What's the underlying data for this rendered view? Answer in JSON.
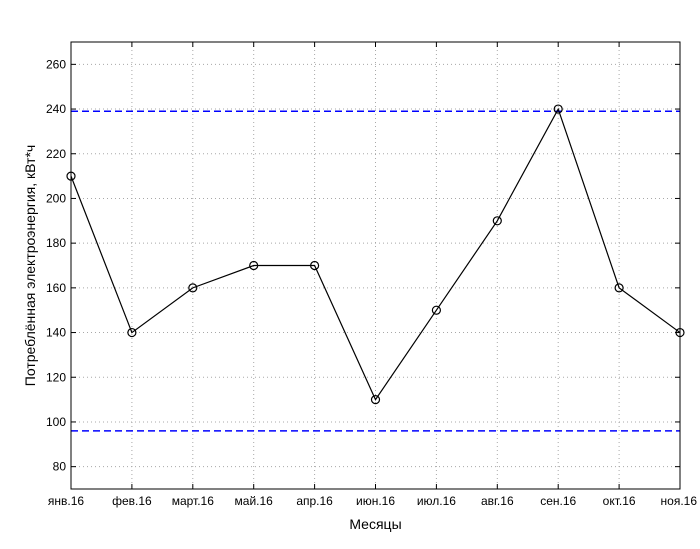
{
  "chart_data": {
    "type": "line",
    "title": "",
    "xlabel": "Месяцы",
    "ylabel": "Потреблённая электроэнергия, кВт*ч",
    "categories": [
      "янв.16",
      "фев.16",
      "март.16",
      "май.16",
      "апр.16",
      "июн.16",
      "июл.16",
      "авг.16",
      "сен.16",
      "окт.16",
      "ноя.16"
    ],
    "series": [
      {
        "values": [
          210,
          140,
          160,
          170,
          170,
          110,
          150,
          190,
          240,
          160,
          140
        ],
        "color": "#000000",
        "marker": "circle"
      }
    ],
    "reference_lines": [
      {
        "y": 239,
        "color": "#0000ff",
        "style": "dashed"
      },
      {
        "y": 96,
        "color": "#0000ff",
        "style": "dashed"
      }
    ],
    "ylim": [
      70,
      270
    ],
    "yticks": [
      80,
      100,
      120,
      140,
      160,
      180,
      200,
      220,
      240,
      260
    ],
    "grid": true
  }
}
